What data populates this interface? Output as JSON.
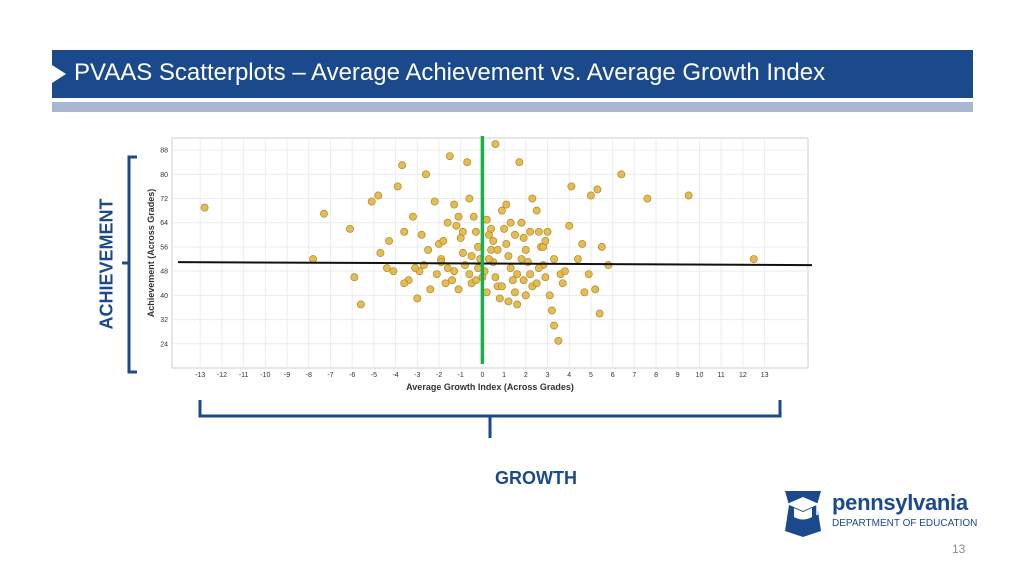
{
  "title": "PVAAS Scatterplots – Average Achievement vs. Average Growth Index",
  "side_labels": {
    "achievement": "ACHIEVEMENT",
    "growth": "GROWTH"
  },
  "logo": {
    "name": "pennsylvania",
    "subtitle": "DEPARTMENT OF EDUCATION",
    "icon": "keystone-graduation-cap-icon"
  },
  "page_number": "13",
  "colors": {
    "brand": "#1b4a8c",
    "point": "#e2b84a",
    "growth_line": "#19b04b",
    "achievement_line": "#111111"
  },
  "chart_data": {
    "type": "scatter",
    "xlabel": "Average Growth Index (Across Grades)",
    "ylabel": "Achievement (Across Grades)",
    "x_ticks": [
      -13,
      -12,
      -11,
      -10,
      -9,
      -8,
      -7,
      -6,
      -5,
      -4,
      -3,
      -2,
      -1,
      0,
      1,
      2,
      3,
      4,
      5,
      6,
      7,
      8,
      9,
      10,
      11,
      12,
      13
    ],
    "y_ticks": [
      24,
      32,
      40,
      48,
      56,
      64,
      72,
      80,
      88
    ],
    "xlim": [
      -14.3,
      15
    ],
    "ylim": [
      16,
      92
    ],
    "grid": true,
    "reference_lines": {
      "vertical_x": 0,
      "horizontal_y_start": 51,
      "horizontal_y_end": 50
    },
    "points": [
      [
        -12.8,
        69
      ],
      [
        -7.3,
        67
      ],
      [
        -7.8,
        52
      ],
      [
        -6.1,
        62
      ],
      [
        -5.9,
        46
      ],
      [
        -5.6,
        37
      ],
      [
        -5.1,
        71
      ],
      [
        -4.8,
        73
      ],
      [
        -4.7,
        54
      ],
      [
        -4.4,
        49
      ],
      [
        -3.9,
        76
      ],
      [
        -3.7,
        83
      ],
      [
        -3.6,
        61
      ],
      [
        -3.4,
        45
      ],
      [
        -3.2,
        66
      ],
      [
        -3.0,
        39
      ],
      [
        -2.9,
        48
      ],
      [
        -2.6,
        80
      ],
      [
        -2.4,
        42
      ],
      [
        -2.2,
        71
      ],
      [
        -2.0,
        57
      ],
      [
        -1.8,
        58
      ],
      [
        -1.5,
        86
      ],
      [
        -1.9,
        52
      ],
      [
        -1.6,
        49
      ],
      [
        -1.4,
        45
      ],
      [
        -1.2,
        63
      ],
      [
        -1.1,
        66
      ],
      [
        -1.0,
        59
      ],
      [
        -0.9,
        54
      ],
      [
        -0.8,
        50
      ],
      [
        -0.6,
        47
      ],
      [
        -0.5,
        44
      ],
      [
        -0.3,
        61
      ],
      [
        -0.2,
        56
      ],
      [
        -0.1,
        52
      ],
      [
        0.1,
        48
      ],
      [
        0.2,
        65
      ],
      [
        0.3,
        60
      ],
      [
        0.4,
        55
      ],
      [
        0.5,
        51
      ],
      [
        0.6,
        46
      ],
      [
        0.7,
        43
      ],
      [
        0.8,
        39
      ],
      [
        0.9,
        68
      ],
      [
        1.0,
        62
      ],
      [
        1.1,
        57
      ],
      [
        1.2,
        53
      ],
      [
        1.3,
        49
      ],
      [
        1.4,
        45
      ],
      [
        1.5,
        41
      ],
      [
        1.6,
        37
      ],
      [
        1.8,
        64
      ],
      [
        1.9,
        59
      ],
      [
        2.0,
        55
      ],
      [
        2.1,
        51
      ],
      [
        2.2,
        47
      ],
      [
        2.3,
        43
      ],
      [
        2.5,
        68
      ],
      [
        2.6,
        61
      ],
      [
        2.7,
        56
      ],
      [
        2.8,
        50
      ],
      [
        2.9,
        46
      ],
      [
        3.1,
        40
      ],
      [
        3.2,
        35
      ],
      [
        3.3,
        30
      ],
      [
        3.5,
        25
      ],
      [
        3.7,
        44
      ],
      [
        4.1,
        76
      ],
      [
        4.4,
        52
      ],
      [
        4.6,
        57
      ],
      [
        4.9,
        47
      ],
      [
        5.2,
        42
      ],
      [
        5.4,
        34
      ],
      [
        5.0,
        73
      ],
      [
        5.5,
        56
      ],
      [
        5.3,
        75
      ],
      [
        6.4,
        80
      ],
      [
        7.6,
        72
      ],
      [
        9.5,
        73
      ],
      [
        12.5,
        52
      ],
      [
        0.6,
        90
      ],
      [
        1.7,
        84
      ],
      [
        -0.7,
        84
      ],
      [
        -3.1,
        49
      ],
      [
        -2.7,
        50
      ],
      [
        0.0,
        46
      ],
      [
        1.3,
        64
      ],
      [
        -1.3,
        70
      ],
      [
        2.3,
        72
      ],
      [
        -2.1,
        47
      ],
      [
        3.6,
        47
      ],
      [
        4.0,
        63
      ],
      [
        -4.3,
        58
      ],
      [
        -0.4,
        66
      ],
      [
        1.6,
        47
      ],
      [
        2.2,
        61
      ],
      [
        -1.7,
        44
      ],
      [
        0.9,
        43
      ],
      [
        2.8,
        56
      ],
      [
        -0.6,
        72
      ],
      [
        3.3,
        52
      ],
      [
        -2.5,
        55
      ],
      [
        -1.1,
        42
      ],
      [
        0.2,
        41
      ],
      [
        1.2,
        38
      ],
      [
        4.7,
        41
      ],
      [
        -3.6,
        44
      ],
      [
        -0.9,
        61
      ],
      [
        5.8,
        50
      ],
      [
        0.5,
        58
      ],
      [
        -0.2,
        49
      ],
      [
        2.0,
        40
      ],
      [
        1.5,
        60
      ],
      [
        -1.6,
        64
      ],
      [
        0.3,
        52
      ],
      [
        3.8,
        48
      ],
      [
        -2.8,
        60
      ],
      [
        1.1,
        70
      ],
      [
        2.6,
        49
      ],
      [
        -1.3,
        48
      ],
      [
        0.7,
        55
      ],
      [
        1.9,
        45
      ],
      [
        3.0,
        61
      ],
      [
        -0.5,
        53
      ],
      [
        2.5,
        44
      ],
      [
        -4.1,
        48
      ],
      [
        0.4,
        62
      ],
      [
        1.8,
        52
      ],
      [
        -1.9,
        51
      ],
      [
        2.9,
        58
      ],
      [
        -0.3,
        45
      ]
    ]
  }
}
